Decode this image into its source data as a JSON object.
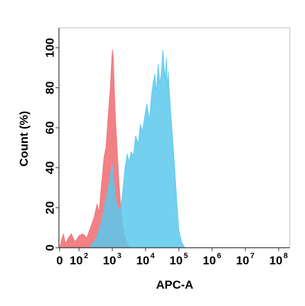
{
  "chart_data": {
    "type": "area",
    "title": "",
    "xlabel": "APC-A",
    "ylabel": "Count  (%)",
    "x_scale": "biexponential (log above 10^2)",
    "xlim": [
      0,
      100000000
    ],
    "ylim": [
      0,
      110
    ],
    "grid": false,
    "y_ticks": [
      "0",
      "20",
      "40",
      "60",
      "80",
      "100"
    ],
    "x_ticks": [
      {
        "base": "0",
        "exp": ""
      },
      {
        "base": "10",
        "exp": "2"
      },
      {
        "base": "10",
        "exp": "3"
      },
      {
        "base": "10",
        "exp": "4"
      },
      {
        "base": "10",
        "exp": "5"
      },
      {
        "base": "10",
        "exp": "6"
      },
      {
        "base": "10",
        "exp": "7"
      },
      {
        "base": "10",
        "exp": "8"
      }
    ],
    "x_tick_values": [
      0,
      100,
      1000,
      10000,
      100000,
      1000000,
      10000000,
      100000000
    ],
    "series": [
      {
        "color": "#f07a7e",
        "fill_opacity": 0.95,
        "points": [
          [
            0,
            0
          ],
          [
            10,
            4
          ],
          [
            20,
            7
          ],
          [
            30,
            2
          ],
          [
            45,
            5
          ],
          [
            60,
            7
          ],
          [
            80,
            3
          ],
          [
            100,
            6
          ],
          [
            130,
            7
          ],
          [
            170,
            5
          ],
          [
            220,
            10
          ],
          [
            280,
            15
          ],
          [
            350,
            22
          ],
          [
            400,
            18
          ],
          [
            480,
            33
          ],
          [
            560,
            45
          ],
          [
            640,
            50
          ],
          [
            720,
            62
          ],
          [
            800,
            72
          ],
          [
            870,
            80
          ],
          [
            930,
            90
          ],
          [
            980,
            97
          ],
          [
            1020,
            99
          ],
          [
            1080,
            94
          ],
          [
            1150,
            80
          ],
          [
            1250,
            64
          ],
          [
            1400,
            50
          ],
          [
            1600,
            32
          ],
          [
            1800,
            20
          ],
          [
            2100,
            10
          ],
          [
            2500,
            4
          ],
          [
            3000,
            1
          ],
          [
            3500,
            0
          ]
        ]
      },
      {
        "color": "#5bc8ec",
        "fill_opacity": 0.85,
        "points": [
          [
            200,
            0
          ],
          [
            320,
            4
          ],
          [
            420,
            10
          ],
          [
            520,
            16
          ],
          [
            620,
            23
          ],
          [
            730,
            28
          ],
          [
            850,
            35
          ],
          [
            980,
            42
          ],
          [
            1100,
            35
          ],
          [
            1250,
            25
          ],
          [
            1450,
            20
          ],
          [
            1700,
            18
          ],
          [
            2000,
            26
          ],
          [
            2400,
            40
          ],
          [
            2800,
            47
          ],
          [
            3200,
            43
          ],
          [
            3700,
            48
          ],
          [
            4300,
            46
          ],
          [
            5000,
            56
          ],
          [
            6000,
            52
          ],
          [
            7000,
            62
          ],
          [
            8000,
            58
          ],
          [
            9500,
            66
          ],
          [
            11000,
            72
          ],
          [
            13000,
            64
          ],
          [
            15000,
            76
          ],
          [
            17000,
            83
          ],
          [
            19000,
            87
          ],
          [
            21000,
            78
          ],
          [
            24000,
            92
          ],
          [
            27000,
            82
          ],
          [
            30000,
            88
          ],
          [
            33000,
            99
          ],
          [
            36000,
            91
          ],
          [
            39000,
            84
          ],
          [
            42000,
            95
          ],
          [
            45000,
            80
          ],
          [
            48000,
            88
          ],
          [
            52000,
            78
          ],
          [
            58000,
            66
          ],
          [
            65000,
            55
          ],
          [
            75000,
            40
          ],
          [
            88000,
            22
          ],
          [
            100000,
            9
          ],
          [
            120000,
            3
          ],
          [
            150000,
            0
          ]
        ]
      }
    ]
  }
}
